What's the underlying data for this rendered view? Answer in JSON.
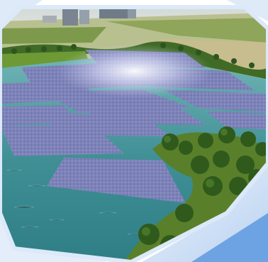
{
  "image": {
    "subject": "floating-solar-farm-rendering",
    "frame_shape": "hexagon",
    "colors": {
      "frame_light": "#dbe9f9",
      "frame_mid": "#a9c8ec",
      "frame_deep": "#5b95dc",
      "water": "#3f8f95",
      "water_light": "#7fb9bd",
      "panel": "#7f86b9",
      "panel_light": "#b4b7e0",
      "grass": "#5a7f2a",
      "trees": "#2f5a1c",
      "sky_haze": "#dfe3e2"
    }
  }
}
